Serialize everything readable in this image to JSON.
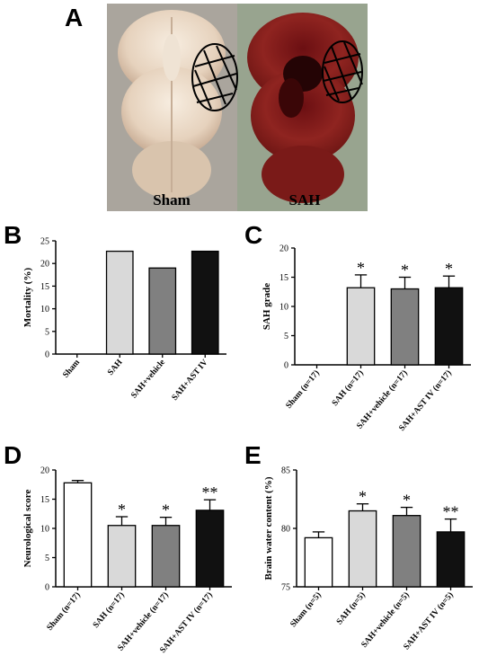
{
  "panel_A": {
    "letter": "A",
    "left_label": "Sham",
    "right_label": "SAH",
    "colors": {
      "sham_tissue": "#e9dccb",
      "sah_tissue": "#8a1d1a",
      "sah_blood": "#2a0405",
      "background_left": "#a9a39a",
      "background_right": "#9aa592"
    }
  },
  "chart_data": [
    {
      "id": "B",
      "type": "bar",
      "title": "",
      "letter": "B",
      "ylabel": "Mortality (%)",
      "xlabel": "",
      "ylim": [
        0,
        25
      ],
      "yticks": [
        0,
        5,
        10,
        15,
        20,
        25
      ],
      "categories": [
        "Sham",
        "SAH",
        "SAH+vehicle",
        "SAH+AST IV"
      ],
      "values": [
        0,
        22.7,
        19.0,
        22.7
      ],
      "errors": [
        0,
        0,
        0,
        0
      ],
      "significance": [
        "",
        "",
        "",
        ""
      ],
      "colors": [
        "#ffffff",
        "#d9d9d9",
        "#808080",
        "#111111"
      ]
    },
    {
      "id": "C",
      "type": "bar",
      "title": "",
      "letter": "C",
      "ylabel": "SAH grade",
      "xlabel": "",
      "ylim": [
        0,
        20
      ],
      "yticks": [
        0,
        5,
        10,
        15,
        20
      ],
      "categories": [
        "Sham (n=17)",
        "SAH (n=17)",
        "SAH+vehicle (n=17)",
        "SAH+AST IV (n=17)"
      ],
      "values": [
        0,
        13.2,
        13.0,
        13.2
      ],
      "errors": [
        0,
        2.2,
        2.0,
        2.0
      ],
      "significance": [
        "",
        "*",
        "*",
        "*"
      ],
      "colors": [
        "#ffffff",
        "#d9d9d9",
        "#808080",
        "#111111"
      ]
    },
    {
      "id": "D",
      "type": "bar",
      "title": "",
      "letter": "D",
      "ylabel": "Neurological score",
      "xlabel": "",
      "ylim": [
        0,
        20
      ],
      "yticks": [
        0,
        5,
        10,
        15,
        20
      ],
      "categories": [
        "Sham (n=17)",
        "SAH (n=17)",
        "SAH+vehicle (n=17)",
        "SAH+AST IV (n=17)"
      ],
      "values": [
        17.8,
        10.5,
        10.5,
        13.1
      ],
      "errors": [
        0.4,
        1.5,
        1.4,
        1.8
      ],
      "significance": [
        "",
        "*",
        "*",
        "**"
      ],
      "colors": [
        "#ffffff",
        "#d9d9d9",
        "#808080",
        "#111111"
      ]
    },
    {
      "id": "E",
      "type": "bar",
      "title": "",
      "letter": "E",
      "ylabel": "Brain water content (%)",
      "xlabel": "",
      "ylim": [
        75,
        85
      ],
      "yticks": [
        75,
        80,
        85
      ],
      "categories": [
        "Sham (n=5)",
        "SAH (n=5)",
        "SAH+vehicle (n=5)",
        "SAH+AST IV (n=5)"
      ],
      "values": [
        79.2,
        81.5,
        81.1,
        79.7
      ],
      "errors": [
        0.5,
        0.6,
        0.7,
        1.1
      ],
      "significance": [
        "",
        "*",
        "*",
        "**"
      ],
      "colors": [
        "#ffffff",
        "#d9d9d9",
        "#808080",
        "#111111"
      ]
    }
  ]
}
